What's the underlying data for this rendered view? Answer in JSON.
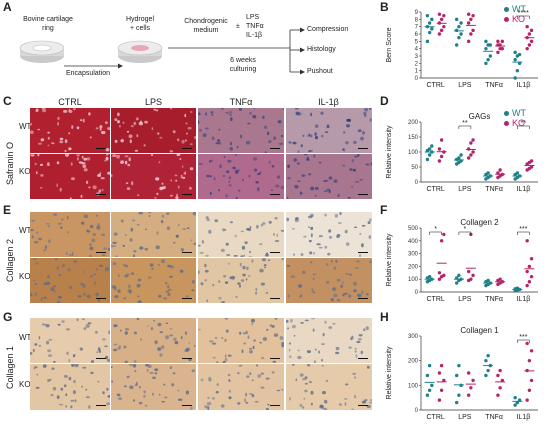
{
  "panel_labels": {
    "A": "A",
    "B": "B",
    "C": "C",
    "D": "D",
    "E": "E",
    "F": "F",
    "G": "G",
    "H": "H"
  },
  "schematic": {
    "ring_label": "Bovine cartilage\nring",
    "hydrogel_label": "Hydrogel\n+ cells",
    "encapsulation": "Encapsulation",
    "medium": "Chondrogenic\nmedium",
    "pm": "±",
    "treatments": "LPS\nTNFα\nIL-1β",
    "culture": "6 weeks\nculturing",
    "outputs": [
      "Compression",
      "Histology",
      "Pushout"
    ]
  },
  "histology": {
    "columns": [
      "CTRL",
      "LPS",
      "TNFα",
      "IL-1β"
    ],
    "row_labels": [
      "WT",
      "KO"
    ],
    "stains": [
      "Safranin O",
      "Collagen 2",
      "Collagen 1"
    ],
    "colors": {
      "saf_wt": [
        "#b0202e",
        "#a81d2c",
        "#a9788f",
        "#b69aa9"
      ],
      "saf_ko": [
        "#b01f30",
        "#b02235",
        "#b06a8e",
        "#a8768e"
      ],
      "col2_wt": [
        "#c99562",
        "#d4ad80",
        "#ead9c2",
        "#ece3d6"
      ],
      "col2_ko": [
        "#b8804a",
        "#c8955e",
        "#e1c6a3",
        "#c39062"
      ],
      "col1_wt": [
        "#e6ccac",
        "#d8b088",
        "#e3c19c",
        "#e9d8c3"
      ],
      "col1_ko": [
        "#e3c6a4",
        "#dab48e",
        "#e2c4a2",
        "#e6cbab"
      ]
    }
  },
  "legend": {
    "wt": "WT",
    "ko": "KO",
    "wt_color": "#1f7f8a",
    "ko_color": "#b5246a"
  },
  "chart_data": [
    {
      "type": "scatter",
      "panel": "B",
      "ylabel": "Bern Score",
      "ylim": [
        0,
        9
      ],
      "yticks": [
        0,
        1,
        2,
        3,
        4,
        5,
        6,
        7,
        8,
        9
      ],
      "categories": [
        "CTRL",
        "LPS",
        "TNFα",
        "IL1β"
      ],
      "series": [
        {
          "name": "WT",
          "values": [
            [
              5,
              6.2,
              6.7,
              7,
              7.5,
              8,
              8.5
            ],
            [
              4.5,
              5.5,
              6,
              6.5,
              7,
              7.5,
              8
            ],
            [
              2,
              2.5,
              3,
              4,
              4.5,
              4.5,
              5
            ],
            [
              0,
              1,
              2,
              2.5,
              3,
              3.2,
              3.5
            ]
          ]
        },
        {
          "name": "KO",
          "values": [
            [
              6,
              6.5,
              7,
              7.5,
              8,
              8.5,
              8.7
            ],
            [
              5,
              6,
              6.5,
              7.5,
              8,
              8.5,
              8.7
            ],
            [
              3.5,
              4,
              4,
              4.5,
              4.5,
              5,
              5
            ],
            [
              4,
              4.5,
              5,
              5.5,
              6,
              6.5,
              7
            ]
          ]
        }
      ],
      "significance": [
        {
          "category": "IL1β",
          "label": "****"
        }
      ]
    },
    {
      "type": "scatter",
      "panel": "D",
      "title": "GAGs",
      "ylabel": "Relative intensity",
      "ylim": [
        0,
        200
      ],
      "yticks": [
        0,
        50,
        100,
        150,
        200
      ],
      "categories": [
        "CTRL",
        "LPS",
        "TNFα",
        "IL1β"
      ],
      "series": [
        {
          "name": "WT",
          "values": [
            [
              75,
              90,
              100,
              105,
              110,
              120
            ],
            [
              60,
              65,
              70,
              75,
              80,
              90
            ],
            [
              10,
              15,
              20,
              25,
              30
            ],
            [
              10,
              15,
              20,
              25,
              30
            ]
          ]
        },
        {
          "name": "KO",
          "values": [
            [
              70,
              85,
              100,
              110,
              140
            ],
            [
              80,
              90,
              100,
              110,
              130,
              140
            ],
            [
              15,
              20,
              25,
              30,
              40
            ],
            [
              40,
              45,
              50,
              60,
              65,
              70
            ]
          ]
        }
      ],
      "significance": [
        {
          "category": "LPS",
          "label": "**"
        },
        {
          "category": "IL1β",
          "label": "**"
        }
      ]
    },
    {
      "type": "scatter",
      "panel": "F",
      "title": "Collagen 2",
      "ylabel": "Relative intensity",
      "ylim": [
        0,
        500
      ],
      "yticks": [
        0,
        100,
        200,
        300,
        400,
        500
      ],
      "categories": [
        "CTRL",
        "LPS",
        "TNFα",
        "IL1β"
      ],
      "series": [
        {
          "name": "WT",
          "values": [
            [
              80,
              90,
              100,
              110,
              120
            ],
            [
              70,
              90,
              100,
              110,
              130
            ],
            [
              50,
              60,
              70,
              80,
              90
            ],
            [
              10,
              15,
              20,
              25,
              30
            ]
          ]
        },
        {
          "name": "KO",
          "values": [
            [
              100,
              120,
              130,
              150,
              400,
              450
            ],
            [
              90,
              100,
              130,
              160,
              450
            ],
            [
              60,
              70,
              80,
              90,
              100
            ],
            [
              50,
              80,
              120,
              160,
              200,
              260,
              400
            ]
          ]
        }
      ],
      "significance": [
        {
          "category": "CTRL",
          "label": "*"
        },
        {
          "category": "LPS",
          "label": "*"
        },
        {
          "category": "IL1β",
          "label": "***"
        }
      ]
    },
    {
      "type": "scatter",
      "panel": "H",
      "title": "Collagen 1",
      "ylabel": "Relative intensity",
      "ylim": [
        0,
        300
      ],
      "yticks": [
        0,
        100,
        200,
        300
      ],
      "categories": [
        "CTRL",
        "LPS",
        "TNFα",
        "IL1β"
      ],
      "series": [
        {
          "name": "WT",
          "values": [
            [
              60,
              80,
              100,
              140,
              180
            ],
            [
              30,
              60,
              100,
              140,
              180
            ],
            [
              140,
              160,
              180,
              200,
              220
            ],
            [
              20,
              30,
              40,
              50
            ]
          ]
        },
        {
          "name": "KO",
          "values": [
            [
              40,
              80,
              120,
              150,
              180
            ],
            [
              60,
              90,
              120,
              150
            ],
            [
              60,
              90,
              120,
              140,
              160
            ],
            [
              40,
              80,
              120,
              160,
              200,
              240,
              270
            ]
          ]
        }
      ],
      "significance": [
        {
          "category": "IL1β",
          "label": "***"
        }
      ]
    }
  ]
}
